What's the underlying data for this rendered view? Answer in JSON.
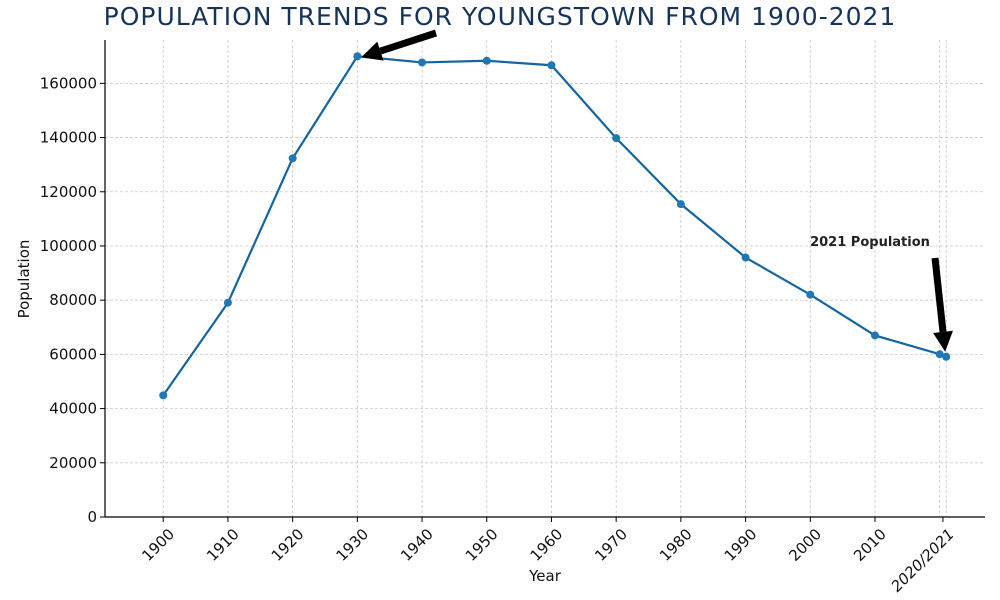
{
  "chart_data": {
    "type": "line",
    "title": "POPULATION TRENDS FOR YOUNGSTOWN FROM 1900-2021",
    "xlabel": "Year",
    "ylabel": "Population",
    "x": [
      1900,
      1910,
      1920,
      1930,
      1940,
      1950,
      1960,
      1970,
      1980,
      1990,
      2000,
      2010,
      2020,
      2021
    ],
    "series": [
      {
        "values": [
          44885,
          79066,
          132358,
          170002,
          167720,
          168330,
          166689,
          139788,
          115436,
          95732,
          82026,
          66982,
          60068,
          59123
        ]
      }
    ],
    "xticks": [
      "1900",
      "1910",
      "1920",
      "1930",
      "1940",
      "1950",
      "1960",
      "1970",
      "1980",
      "1990",
      "2000",
      "2010",
      "2020/2021"
    ],
    "yticks": [
      0,
      20000,
      40000,
      60000,
      80000,
      100000,
      120000,
      140000,
      160000
    ],
    "xlim": [
      1891,
      2027
    ],
    "ylim": [
      0,
      176000
    ],
    "grid": true,
    "annotations": [
      {
        "text": "",
        "target_x": 1930,
        "target_y": 170002
      },
      {
        "text": "2021 Population",
        "target_x": 2021,
        "target_y": 59123
      }
    ],
    "colors": {
      "line": "#1565a0",
      "marker": "#1f77b4",
      "title": "#16335a",
      "highlight_tick": "#5a1e1e",
      "arrow": "#000000"
    }
  }
}
